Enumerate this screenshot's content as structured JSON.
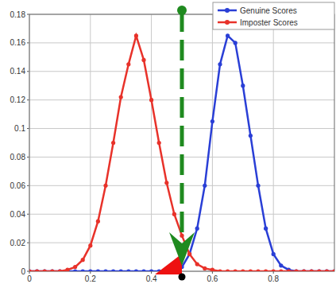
{
  "chart_data": {
    "type": "line",
    "x": [
      0,
      0.025,
      0.05,
      0.075,
      0.1,
      0.125,
      0.15,
      0.175,
      0.2,
      0.225,
      0.25,
      0.275,
      0.3,
      0.325,
      0.35,
      0.375,
      0.4,
      0.425,
      0.45,
      0.475,
      0.5,
      0.525,
      0.55,
      0.575,
      0.6,
      0.625,
      0.65,
      0.675,
      0.7,
      0.725,
      0.75,
      0.775,
      0.8,
      0.825,
      0.85,
      0.875,
      0.9,
      0.925,
      0.95,
      0.975,
      1
    ],
    "series": [
      {
        "name": "Genuine Scores",
        "color": "#2a3fd6",
        "marker": "circle",
        "line_style": "solid",
        "values": [
          0,
          0,
          0,
          0,
          0,
          0,
          0,
          0,
          0,
          0,
          0,
          0,
          0,
          0,
          0,
          0,
          0,
          0,
          0,
          0.001,
          0.003,
          0.012,
          0.03,
          0.06,
          0.105,
          0.145,
          0.165,
          0.16,
          0.13,
          0.095,
          0.06,
          0.03,
          0.012,
          0.004,
          0.001,
          0,
          0,
          0,
          0,
          0,
          0
        ]
      },
      {
        "name": "Imposter Scores",
        "color": "#e8322a",
        "marker": "circle",
        "line_style": "solid",
        "values": [
          0,
          0,
          0,
          0,
          0,
          0.001,
          0.003,
          0.008,
          0.018,
          0.035,
          0.06,
          0.09,
          0.122,
          0.145,
          0.165,
          0.148,
          0.12,
          0.09,
          0.062,
          0.04,
          0.025,
          0.012,
          0.005,
          0.002,
          0.001,
          0,
          0,
          0,
          0,
          0,
          0,
          0,
          0,
          0,
          0,
          0,
          0,
          0,
          0,
          0,
          0
        ]
      }
    ],
    "threshold": 0.5,
    "xlim": [
      0,
      1
    ],
    "xticks": [
      0,
      0.2,
      0.4,
      0.6,
      0.8
    ],
    "ylim": [
      0,
      0.18
    ],
    "yticks": [
      0,
      0.02,
      0.04,
      0.06,
      0.08,
      0.1,
      0.12,
      0.14,
      0.16,
      0.18
    ],
    "grid": true,
    "legend": "upper right"
  }
}
